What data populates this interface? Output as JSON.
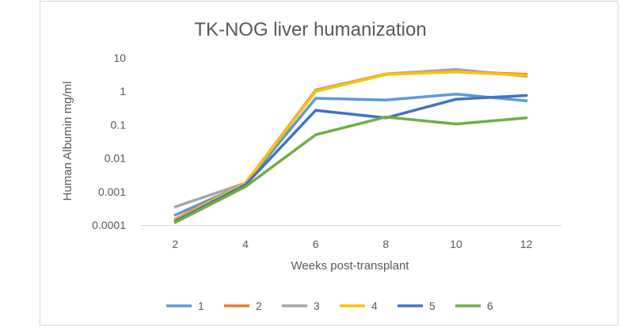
{
  "chart_data": {
    "type": "line",
    "title": "TK-NOG liver humanization",
    "xlabel": "Weeks post-transplant",
    "ylabel": "Human Albumin mg/ml",
    "x": [
      2,
      4,
      6,
      8,
      10,
      12
    ],
    "x_tick_labels": [
      "2",
      "4",
      "6",
      "8",
      "10",
      "12"
    ],
    "y_scale": "log",
    "ylim": [
      0.0001,
      10
    ],
    "y_tick_labels": [
      "0.0001",
      "0.001",
      "0.01",
      "0.1",
      "1",
      "10"
    ],
    "grid": "none",
    "legend_position": "bottom",
    "series": [
      {
        "name": "1",
        "color": "#5B9BD5",
        "values": [
          0.0002,
          0.0017,
          0.62,
          0.55,
          0.82,
          0.52
        ]
      },
      {
        "name": "2",
        "color": "#ED7D31",
        "values": [
          0.00015,
          0.0018,
          1.0,
          3.2,
          4.0,
          3.2
        ]
      },
      {
        "name": "3",
        "color": "#A5A5A5",
        "values": [
          0.00035,
          0.0018,
          1.1,
          3.3,
          4.5,
          2.8
        ]
      },
      {
        "name": "4",
        "color": "#FFC000",
        "values": [
          0.00014,
          0.0018,
          1.0,
          3.2,
          3.8,
          3.0
        ]
      },
      {
        "name": "5",
        "color": "#4472C4",
        "values": [
          0.00013,
          0.0016,
          0.27,
          0.16,
          0.58,
          0.75
        ]
      },
      {
        "name": "6",
        "color": "#70AD47",
        "values": [
          0.00012,
          0.0014,
          0.05,
          0.17,
          0.105,
          0.16
        ]
      }
    ]
  }
}
